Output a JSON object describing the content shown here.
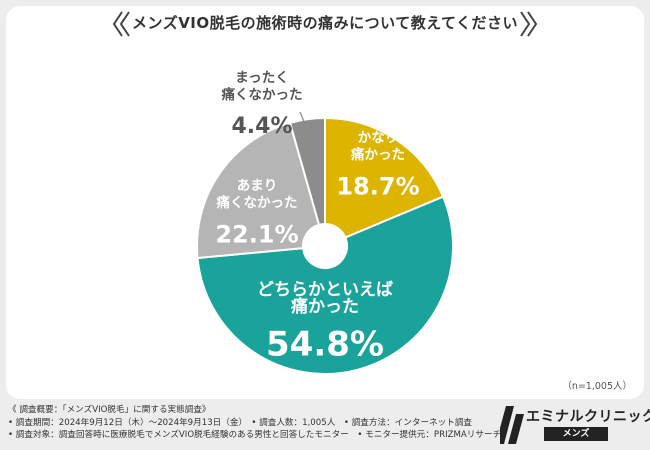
{
  "chart_data": {
    "type": "pie",
    "title": "メンズVIO脱毛の施術時の痛みについて教えてください",
    "slices": [
      {
        "label": "かなり痛かった",
        "label_lines": [
          "かなり",
          "痛かった"
        ],
        "value": 18.7,
        "display": "18.7%",
        "color": "#ddb400"
      },
      {
        "label": "どちらかといえば痛かった",
        "label_lines": [
          "どちらかといえば",
          "痛かった"
        ],
        "value": 54.8,
        "display": "54.8%",
        "color": "#1aa39a"
      },
      {
        "label": "あまり痛くなかった",
        "label_lines": [
          "あまり",
          "痛くなかった"
        ],
        "value": 22.1,
        "display": "22.1%",
        "color": "#b5b5b5"
      },
      {
        "label": "まったく痛くなかった",
        "label_lines": [
          "まったく",
          "痛くなかった"
        ],
        "value": 4.4,
        "display": "4.4%",
        "color": "#8c8c8c"
      }
    ],
    "sample_note": "（n=1,005人）"
  },
  "footer": {
    "line1": "《 調査概要：「メンズVIO脱毛」に関する実態調査》",
    "line2": "• 調査期間：2024年9月12日（木）〜2024年9月13日（金）　• 調査人数：1,005人　• 調査方法：インターネット調査",
    "line3": "• 調査対象：調査回答時に医療脱毛でメンズVIO脱毛経験のある男性と回答したモニター　• モニター提供元：PRIZMAリサーチ"
  },
  "brand": {
    "name": "エミナルクリニック",
    "sub": "メンズ"
  }
}
